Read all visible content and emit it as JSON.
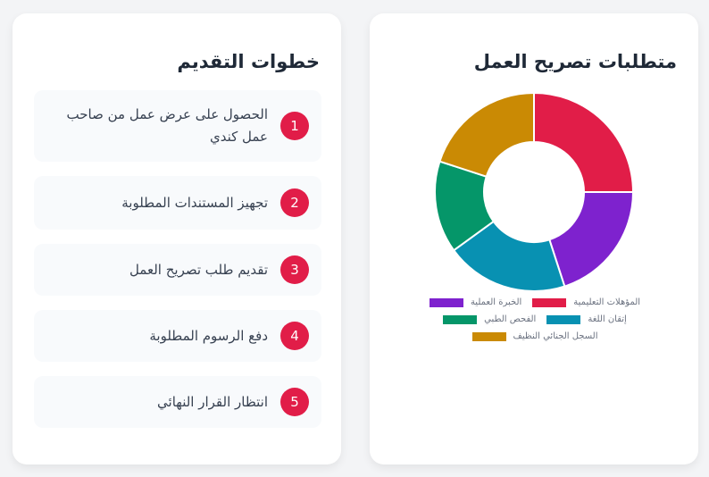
{
  "chart_card": {
    "title": "متطلبات تصريح العمل"
  },
  "steps_card": {
    "title": "خطوات التقديم",
    "steps": [
      {
        "number": "1",
        "text": "الحصول على عرض عمل من صاحب عمل كندي"
      },
      {
        "number": "2",
        "text": "تجهيز المستندات المطلوبة"
      },
      {
        "number": "3",
        "text": "تقديم طلب تصريح العمل"
      },
      {
        "number": "4",
        "text": "دفع الرسوم المطلوبة"
      },
      {
        "number": "5",
        "text": "انتظار القرار النهائي"
      }
    ]
  },
  "chart_data": {
    "type": "pie",
    "subtype": "doughnut",
    "title": "متطلبات تصريح العمل",
    "categories": [
      "المؤهلات التعليمية",
      "الخبرة العملية",
      "إتقان اللغة",
      "الفحص الطبي",
      "السجل الجنائي النظيف"
    ],
    "values": [
      25,
      20,
      20,
      15,
      20
    ],
    "colors": [
      "#e11d48",
      "#7e22ce",
      "#0891b2",
      "#059669",
      "#ca8a04"
    ],
    "legend_position": "bottom"
  }
}
